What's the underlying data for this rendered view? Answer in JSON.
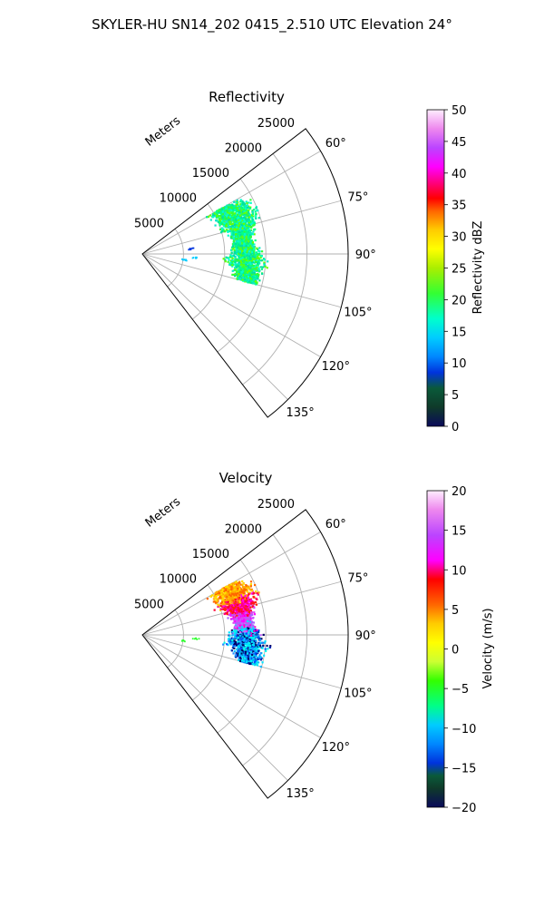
{
  "figure_title": "SKYLER-HU  SN14_202  0415_2.510 UTC Elevation 24°",
  "chart_data": [
    {
      "type": "polar-sector-scatter",
      "title": "Reflectivity",
      "radial_label": "Meters",
      "radial_ticks": [
        5000,
        10000,
        15000,
        20000,
        25000
      ],
      "radial_tick_labels": [
        "5000",
        "10000",
        "15000",
        "20000",
        "25000"
      ],
      "rmax": 25000,
      "theta_range_deg": [
        52.5,
        142.5
      ],
      "theta_ticks": [
        60,
        75,
        90,
        105,
        120,
        135
      ],
      "theta_tick_labels": [
        "60°",
        "75°",
        "90°",
        "105°",
        "120°",
        "135°"
      ],
      "grid": true,
      "colorbar": {
        "label": "Reflectivity dBZ",
        "min": 0,
        "max": 50,
        "ticks": [
          0,
          5,
          10,
          15,
          20,
          25,
          30,
          35,
          40,
          45,
          50
        ],
        "tick_labels": [
          "0",
          "5",
          "10",
          "15",
          "20",
          "25",
          "30",
          "35",
          "40",
          "45",
          "50"
        ],
        "colormap": "pyart_HomeyerRainbow"
      },
      "echo_region": {
        "azimuth_deg": [
          60,
          105
        ],
        "range_m": [
          10000,
          16500
        ],
        "typical_value_range": [
          10,
          20
        ],
        "dominant_colors": [
          "#00ffa0",
          "#33ff33",
          "#00ff66",
          "#10e8c8"
        ]
      },
      "sparse_points": [
        {
          "azimuth_deg": 94,
          "range_m": 6500,
          "value": 10
        },
        {
          "azimuth_deg": 98,
          "range_m": 5200,
          "value": 8
        },
        {
          "azimuth_deg": 84,
          "range_m": 6000,
          "value": 5
        }
      ]
    },
    {
      "type": "polar-sector-scatter",
      "title": "Velocity",
      "radial_label": "Meters",
      "radial_ticks": [
        5000,
        10000,
        15000,
        20000,
        25000
      ],
      "radial_tick_labels": [
        "5000",
        "10000",
        "15000",
        "20000",
        "25000"
      ],
      "rmax": 25000,
      "theta_range_deg": [
        52.5,
        142.5
      ],
      "theta_ticks": [
        60,
        75,
        90,
        105,
        120,
        135
      ],
      "theta_tick_labels": [
        "60°",
        "75°",
        "90°",
        "105°",
        "120°",
        "135°"
      ],
      "grid": true,
      "colorbar": {
        "label": "Velocity (m/s)",
        "min": -20,
        "max": 20,
        "ticks": [
          -20,
          -15,
          -10,
          -5,
          0,
          5,
          10,
          15,
          20
        ],
        "tick_labels": [
          "−20",
          "−15",
          "−10",
          "−5",
          "0",
          "5",
          "10",
          "15",
          "20"
        ],
        "colormap": "pyart_BuDRd18"
      },
      "echo_region": {
        "azimuth_deg": [
          60,
          105
        ],
        "range_m": [
          10000,
          16500
        ],
        "north_portion_value_range": [
          5,
          15
        ],
        "south_portion_value_range": [
          -15,
          -10
        ],
        "dominant_colors": [
          "#ffd000",
          "#ff2a00",
          "#ff00ff",
          "#cc66ff",
          "#00e5ff",
          "#1e90ff",
          "#0033ff"
        ]
      },
      "sparse_points": [
        {
          "azimuth_deg": 94,
          "range_m": 6500,
          "value": -5
        },
        {
          "azimuth_deg": 98,
          "range_m": 5200,
          "value": -5
        }
      ]
    }
  ]
}
